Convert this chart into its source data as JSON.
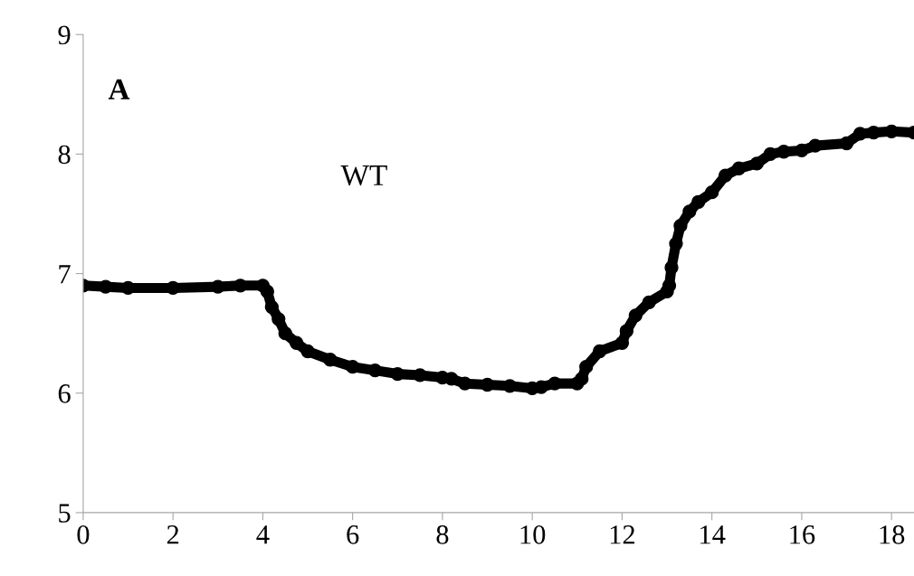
{
  "chart_data": {
    "type": "line",
    "marker": "circle",
    "grid": false,
    "x": [
      0,
      0.5,
      1,
      2,
      3,
      3.5,
      4,
      4.1,
      4.2,
      4.35,
      4.5,
      4.75,
      5,
      5.5,
      6,
      6.5,
      7,
      7.5,
      8,
      8.2,
      8.5,
      9,
      9.5,
      10,
      10.2,
      10.5,
      11,
      11.1,
      11.2,
      11.5,
      12,
      12.1,
      12.3,
      12.6,
      13,
      13.05,
      13.1,
      13.2,
      13.3,
      13.5,
      13.7,
      14,
      14.3,
      14.6,
      15,
      15.3,
      15.6,
      16,
      16.3,
      17,
      17.3,
      17.6,
      18,
      18.5
    ],
    "series": [
      {
        "color": "#000000",
        "values": [
          6.9,
          6.89,
          6.88,
          6.88,
          6.89,
          6.9,
          6.9,
          6.85,
          6.72,
          6.62,
          6.5,
          6.42,
          6.35,
          6.28,
          6.22,
          6.19,
          6.16,
          6.15,
          6.13,
          6.12,
          6.08,
          6.07,
          6.06,
          6.04,
          6.05,
          6.08,
          6.08,
          6.12,
          6.22,
          6.35,
          6.42,
          6.52,
          6.65,
          6.76,
          6.85,
          6.9,
          7.05,
          7.25,
          7.4,
          7.52,
          7.6,
          7.68,
          7.82,
          7.88,
          7.92,
          8.0,
          8.02,
          8.03,
          8.07,
          8.09,
          8.17,
          8.18,
          8.19,
          8.18
        ]
      }
    ],
    "xlim": [
      0,
      18.5
    ],
    "ylim": [
      5,
      9
    ],
    "xticks": [
      0,
      2,
      4,
      6,
      8,
      10,
      12,
      14,
      16,
      18
    ],
    "yticks": [
      5,
      6,
      7,
      8,
      9
    ],
    "annotations": [
      "A",
      "WT"
    ]
  }
}
